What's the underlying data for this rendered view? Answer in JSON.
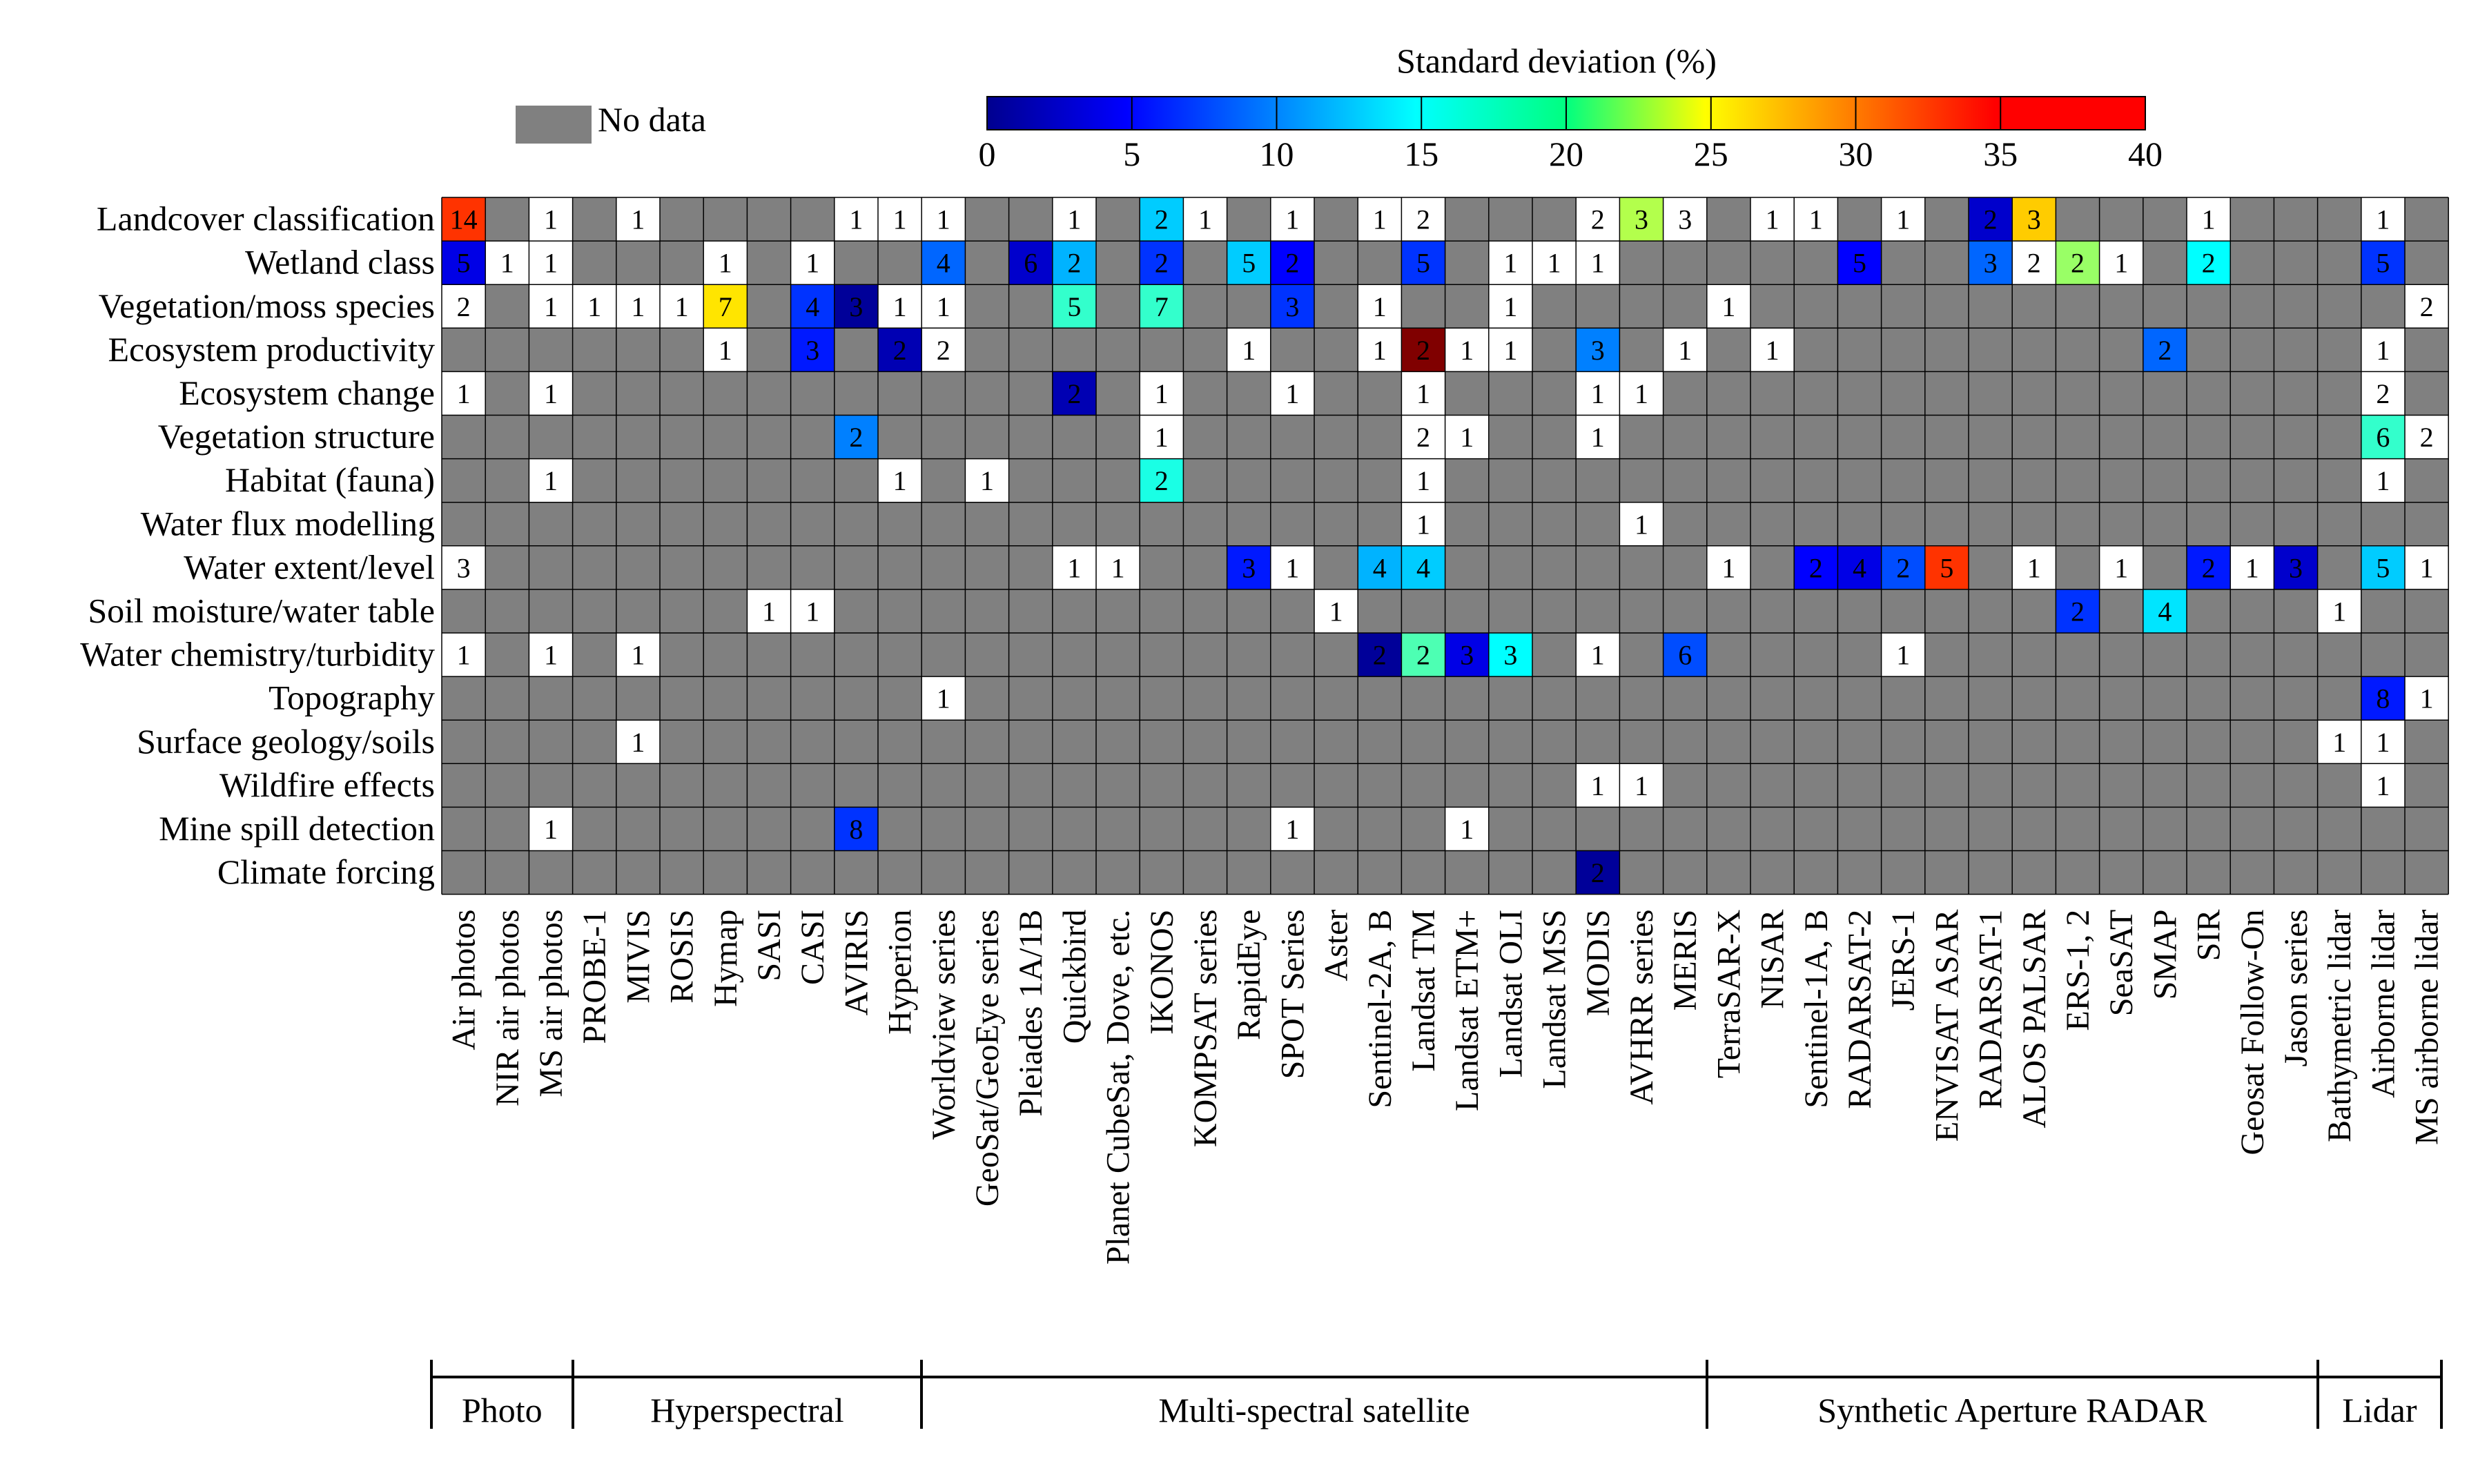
{
  "chart_data": {
    "type": "heatmap",
    "title": "",
    "colorbar": {
      "title": "Standard deviation (%)",
      "min": 0,
      "max": 40,
      "ticks": [
        "0",
        "5",
        "10",
        "15",
        "20",
        "25",
        "30",
        "35",
        "40"
      ],
      "colormap": "jet"
    },
    "no_data_label": "No data",
    "no_data_color": "#808080",
    "rows": [
      "Landcover classification",
      "Wetland class",
      "Vegetation/moss species",
      "Ecosystem productivity",
      "Ecosystem change",
      "Vegetation structure",
      "Habitat (fauna)",
      "Water flux modelling",
      "Water extent/level",
      "Soil moisture/water table",
      "Water chemistry/turbidity",
      "Topography",
      "Surface geology/soils",
      "Wildfire effects",
      "Mine spill detection",
      "Climate forcing"
    ],
    "columns": [
      "Air photos",
      "NIR air photos",
      "MS air photos",
      "PROBE-1",
      "MIVIS",
      "ROSIS",
      "Hymap",
      "SASI",
      "CASI",
      "AVIRIS",
      "Hyperion",
      "Worldview series",
      "GeoSat/GeoEye series",
      "Pleiades 1A/1B",
      "Quickbird",
      "Planet CubeSat, Dove, etc.",
      "IKONOS",
      "KOMPSAT series",
      "RapidEye",
      "SPOT Series",
      "Aster",
      "Sentinel-2A, B",
      "Landsat TM",
      "Landsat ETM+",
      "Landsat OLI",
      "Landsat MSS",
      "MODIS",
      "AVHRR series",
      "MERIS",
      "TerraSAR-X",
      "NISAR",
      "Sentinel-1A, B",
      "RADARSAT-2",
      "JERS-1",
      "ENVISAT ASAR",
      "RADARSAT-1",
      "ALOS PALSAR",
      "ERS-1, 2",
      "SeaSAT",
      "SMAP",
      "SIR",
      "Geosat Follow-On",
      "Jason series",
      "Bathymetric lidar",
      "Airborne lidar",
      "MS airborne lidar"
    ],
    "groups": [
      {
        "label": "Photo",
        "start": 0,
        "end": 2
      },
      {
        "label": "Hyperspectral",
        "start": 3,
        "end": 10
      },
      {
        "label": "Multi-spectral satellite",
        "start": 11,
        "end": 28
      },
      {
        "label": "Synthetic Aperture RADAR",
        "start": 29,
        "end": 42
      },
      {
        "label": "Lidar",
        "start": 43,
        "end": 45
      }
    ],
    "cells": [
      {
        "row": 0,
        "col": 0,
        "count": 14,
        "sd": 33
      },
      {
        "row": 0,
        "col": 2,
        "count": 1
      },
      {
        "row": 0,
        "col": 4,
        "count": 1
      },
      {
        "row": 0,
        "col": 9,
        "count": 1
      },
      {
        "row": 0,
        "col": 10,
        "count": 1
      },
      {
        "row": 0,
        "col": 11,
        "count": 1
      },
      {
        "row": 0,
        "col": 14,
        "count": 1
      },
      {
        "row": 0,
        "col": 16,
        "count": 2,
        "sd": 13
      },
      {
        "row": 0,
        "col": 17,
        "count": 1
      },
      {
        "row": 0,
        "col": 19,
        "count": 1
      },
      {
        "row": 0,
        "col": 21,
        "count": 1
      },
      {
        "row": 0,
        "col": 22,
        "count": 2
      },
      {
        "row": 0,
        "col": 26,
        "count": 2
      },
      {
        "row": 0,
        "col": 27,
        "count": 3,
        "sd": 22
      },
      {
        "row": 0,
        "col": 28,
        "count": 3
      },
      {
        "row": 0,
        "col": 30,
        "count": 1
      },
      {
        "row": 0,
        "col": 31,
        "count": 1
      },
      {
        "row": 0,
        "col": 33,
        "count": 1
      },
      {
        "row": 0,
        "col": 35,
        "count": 2,
        "sd": 3
      },
      {
        "row": 0,
        "col": 36,
        "count": 3,
        "sd": 27
      },
      {
        "row": 0,
        "col": 40,
        "count": 1
      },
      {
        "row": 0,
        "col": 44,
        "count": 1
      },
      {
        "row": 1,
        "col": 0,
        "count": 5,
        "sd": 4
      },
      {
        "row": 1,
        "col": 1,
        "count": 1
      },
      {
        "row": 1,
        "col": 2,
        "count": 1
      },
      {
        "row": 1,
        "col": 6,
        "count": 1
      },
      {
        "row": 1,
        "col": 8,
        "count": 1
      },
      {
        "row": 1,
        "col": 11,
        "count": 4,
        "sd": 9
      },
      {
        "row": 1,
        "col": 13,
        "count": 6,
        "sd": 3
      },
      {
        "row": 1,
        "col": 14,
        "count": 2,
        "sd": 12
      },
      {
        "row": 1,
        "col": 16,
        "count": 2,
        "sd": 7
      },
      {
        "row": 1,
        "col": 18,
        "count": 5,
        "sd": 13
      },
      {
        "row": 1,
        "col": 19,
        "count": 2,
        "sd": 5
      },
      {
        "row": 1,
        "col": 22,
        "count": 5,
        "sd": 7
      },
      {
        "row": 1,
        "col": 24,
        "count": 1
      },
      {
        "row": 1,
        "col": 25,
        "count": 1
      },
      {
        "row": 1,
        "col": 26,
        "count": 1
      },
      {
        "row": 1,
        "col": 32,
        "count": 5,
        "sd": 5
      },
      {
        "row": 1,
        "col": 35,
        "count": 3,
        "sd": 9
      },
      {
        "row": 1,
        "col": 36,
        "count": 2
      },
      {
        "row": 1,
        "col": 37,
        "count": 2,
        "sd": 21
      },
      {
        "row": 1,
        "col": 38,
        "count": 1
      },
      {
        "row": 1,
        "col": 40,
        "count": 2,
        "sd": 15
      },
      {
        "row": 1,
        "col": 44,
        "count": 5,
        "sd": 7
      },
      {
        "row": 2,
        "col": 0,
        "count": 2
      },
      {
        "row": 2,
        "col": 2,
        "count": 1
      },
      {
        "row": 2,
        "col": 3,
        "count": 1
      },
      {
        "row": 2,
        "col": 4,
        "count": 1
      },
      {
        "row": 2,
        "col": 5,
        "count": 1
      },
      {
        "row": 2,
        "col": 6,
        "count": 7,
        "sd": 26
      },
      {
        "row": 2,
        "col": 8,
        "count": 4,
        "sd": 7
      },
      {
        "row": 2,
        "col": 9,
        "count": 3,
        "sd": 1
      },
      {
        "row": 2,
        "col": 10,
        "count": 1
      },
      {
        "row": 2,
        "col": 11,
        "count": 1
      },
      {
        "row": 2,
        "col": 14,
        "count": 5,
        "sd": 17
      },
      {
        "row": 2,
        "col": 16,
        "count": 7,
        "sd": 17
      },
      {
        "row": 2,
        "col": 19,
        "count": 3,
        "sd": 7
      },
      {
        "row": 2,
        "col": 21,
        "count": 1
      },
      {
        "row": 2,
        "col": 24,
        "count": 1
      },
      {
        "row": 2,
        "col": 29,
        "count": 1
      },
      {
        "row": 2,
        "col": 45,
        "count": 2
      },
      {
        "row": 3,
        "col": 6,
        "count": 1
      },
      {
        "row": 3,
        "col": 8,
        "count": 3,
        "sd": 6
      },
      {
        "row": 3,
        "col": 10,
        "count": 2,
        "sd": 2
      },
      {
        "row": 3,
        "col": 11,
        "count": 2
      },
      {
        "row": 3,
        "col": 18,
        "count": 1
      },
      {
        "row": 3,
        "col": 21,
        "count": 1
      },
      {
        "row": 3,
        "col": 22,
        "count": 2,
        "sd": 40
      },
      {
        "row": 3,
        "col": 23,
        "count": 1
      },
      {
        "row": 3,
        "col": 24,
        "count": 1
      },
      {
        "row": 3,
        "col": 26,
        "count": 3,
        "sd": 10
      },
      {
        "row": 3,
        "col": 28,
        "count": 1
      },
      {
        "row": 3,
        "col": 30,
        "count": 1
      },
      {
        "row": 3,
        "col": 39,
        "count": 2,
        "sd": 9
      },
      {
        "row": 3,
        "col": 44,
        "count": 1
      },
      {
        "row": 4,
        "col": 0,
        "count": 1
      },
      {
        "row": 4,
        "col": 2,
        "count": 1
      },
      {
        "row": 4,
        "col": 14,
        "count": 2,
        "sd": 2
      },
      {
        "row": 4,
        "col": 16,
        "count": 1
      },
      {
        "row": 4,
        "col": 19,
        "count": 1
      },
      {
        "row": 4,
        "col": 22,
        "count": 1
      },
      {
        "row": 4,
        "col": 26,
        "count": 1
      },
      {
        "row": 4,
        "col": 27,
        "count": 1
      },
      {
        "row": 4,
        "col": 44,
        "count": 2
      },
      {
        "row": 5,
        "col": 9,
        "count": 2,
        "sd": 10
      },
      {
        "row": 5,
        "col": 16,
        "count": 1
      },
      {
        "row": 5,
        "col": 22,
        "count": 2
      },
      {
        "row": 5,
        "col": 23,
        "count": 1
      },
      {
        "row": 5,
        "col": 26,
        "count": 1
      },
      {
        "row": 5,
        "col": 44,
        "count": 6,
        "sd": 17
      },
      {
        "row": 5,
        "col": 45,
        "count": 2
      },
      {
        "row": 6,
        "col": 2,
        "count": 1
      },
      {
        "row": 6,
        "col": 10,
        "count": 1
      },
      {
        "row": 6,
        "col": 12,
        "count": 1
      },
      {
        "row": 6,
        "col": 16,
        "count": 2,
        "sd": 16
      },
      {
        "row": 6,
        "col": 22,
        "count": 1
      },
      {
        "row": 6,
        "col": 44,
        "count": 1
      },
      {
        "row": 7,
        "col": 22,
        "count": 1
      },
      {
        "row": 7,
        "col": 27,
        "count": 1
      },
      {
        "row": 8,
        "col": 0,
        "count": 3
      },
      {
        "row": 8,
        "col": 14,
        "count": 1
      },
      {
        "row": 8,
        "col": 15,
        "count": 1
      },
      {
        "row": 8,
        "col": 18,
        "count": 3,
        "sd": 6
      },
      {
        "row": 8,
        "col": 19,
        "count": 1
      },
      {
        "row": 8,
        "col": 21,
        "count": 4,
        "sd": 12
      },
      {
        "row": 8,
        "col": 22,
        "count": 4,
        "sd": 13
      },
      {
        "row": 8,
        "col": 29,
        "count": 1
      },
      {
        "row": 8,
        "col": 31,
        "count": 2,
        "sd": 5
      },
      {
        "row": 8,
        "col": 32,
        "count": 4,
        "sd": 4
      },
      {
        "row": 8,
        "col": 33,
        "count": 2,
        "sd": 8
      },
      {
        "row": 8,
        "col": 34,
        "count": 5,
        "sd": 33
      },
      {
        "row": 8,
        "col": 36,
        "count": 1
      },
      {
        "row": 8,
        "col": 38,
        "count": 1
      },
      {
        "row": 8,
        "col": 40,
        "count": 2,
        "sd": 6
      },
      {
        "row": 8,
        "col": 41,
        "count": 1
      },
      {
        "row": 8,
        "col": 42,
        "count": 3,
        "sd": 3
      },
      {
        "row": 8,
        "col": 44,
        "count": 5,
        "sd": 13
      },
      {
        "row": 8,
        "col": 45,
        "count": 1
      },
      {
        "row": 9,
        "col": 7,
        "count": 1
      },
      {
        "row": 9,
        "col": 8,
        "count": 1
      },
      {
        "row": 9,
        "col": 20,
        "count": 1
      },
      {
        "row": 9,
        "col": 37,
        "count": 2,
        "sd": 7
      },
      {
        "row": 9,
        "col": 39,
        "count": 4,
        "sd": 14
      },
      {
        "row": 9,
        "col": 43,
        "count": 1
      },
      {
        "row": 10,
        "col": 0,
        "count": 1
      },
      {
        "row": 10,
        "col": 2,
        "count": 1
      },
      {
        "row": 10,
        "col": 4,
        "count": 1
      },
      {
        "row": 10,
        "col": 21,
        "count": 2,
        "sd": 1
      },
      {
        "row": 10,
        "col": 22,
        "count": 2,
        "sd": 18
      },
      {
        "row": 10,
        "col": 23,
        "count": 3,
        "sd": 4
      },
      {
        "row": 10,
        "col": 24,
        "count": 3,
        "sd": 15
      },
      {
        "row": 10,
        "col": 26,
        "count": 1
      },
      {
        "row": 10,
        "col": 28,
        "count": 6,
        "sd": 8
      },
      {
        "row": 10,
        "col": 33,
        "count": 1
      },
      {
        "row": 11,
        "col": 11,
        "count": 1
      },
      {
        "row": 11,
        "col": 44,
        "count": 8,
        "sd": 6
      },
      {
        "row": 11,
        "col": 45,
        "count": 1
      },
      {
        "row": 12,
        "col": 4,
        "count": 1
      },
      {
        "row": 12,
        "col": 43,
        "count": 1
      },
      {
        "row": 12,
        "col": 44,
        "count": 1
      },
      {
        "row": 13,
        "col": 26,
        "count": 1
      },
      {
        "row": 13,
        "col": 27,
        "count": 1
      },
      {
        "row": 13,
        "col": 44,
        "count": 1
      },
      {
        "row": 14,
        "col": 2,
        "count": 1
      },
      {
        "row": 14,
        "col": 9,
        "count": 8,
        "sd": 7
      },
      {
        "row": 14,
        "col": 19,
        "count": 1
      },
      {
        "row": 14,
        "col": 23,
        "count": 1
      },
      {
        "row": 15,
        "col": 26,
        "count": 2,
        "sd": 1
      }
    ]
  }
}
